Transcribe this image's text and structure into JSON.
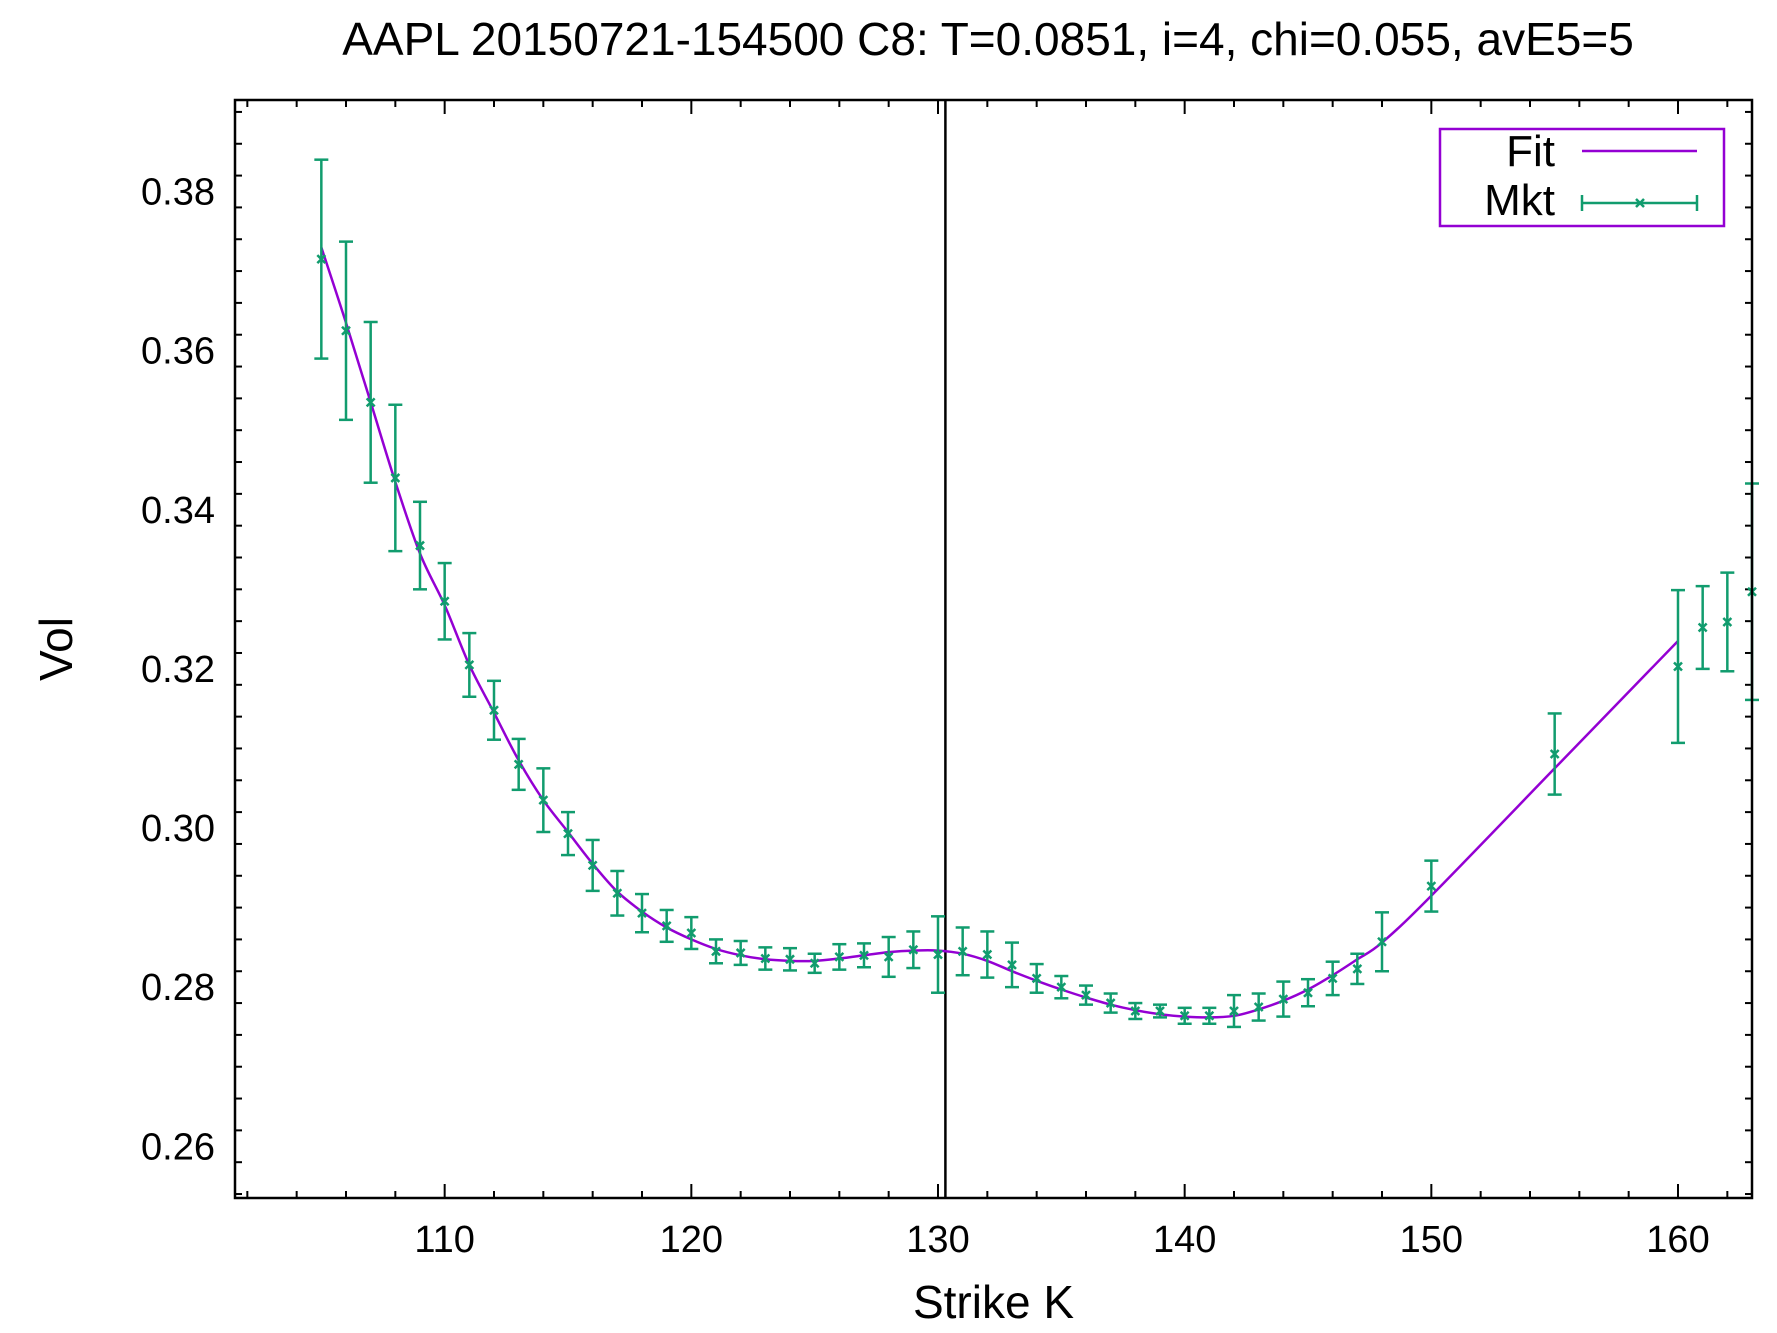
{
  "chart_data": {
    "type": "line",
    "title": "AAPL 20150721-154500  C8:  T=0.0851, i=4, chi=0.055, avE5=5",
    "xlabel": "Strike K",
    "ylabel": "Vol",
    "xlim": [
      101.5,
      163
    ],
    "ylim": [
      0.2535,
      0.3915
    ],
    "x_ticks": [
      "110",
      "120",
      "130",
      "140",
      "150",
      "160"
    ],
    "y_ticks": [
      "0.26",
      "0.28",
      "0.30",
      "0.32",
      "0.34",
      "0.36",
      "0.38"
    ],
    "vertical_line_x": 130.3,
    "legend_position": "top-right",
    "series": [
      {
        "name": "Fit",
        "color": "#9400d3",
        "style": "line",
        "x": [
          105,
          106,
          107,
          108,
          109,
          110,
          111,
          112,
          113,
          114,
          115,
          116,
          117,
          118,
          119,
          120,
          121,
          122,
          123,
          124,
          125,
          126,
          127,
          128,
          129,
          130,
          131,
          132,
          133,
          134,
          135,
          136,
          137,
          138,
          139,
          140,
          141,
          142,
          143,
          144,
          145,
          146,
          147,
          148,
          150,
          155,
          160
        ],
        "y": [
          0.373,
          0.3635,
          0.3535,
          0.3435,
          0.3345,
          0.328,
          0.3205,
          0.3145,
          0.3085,
          0.3035,
          0.2995,
          0.2955,
          0.292,
          0.2895,
          0.2875,
          0.286,
          0.2848,
          0.284,
          0.2835,
          0.2833,
          0.2833,
          0.2836,
          0.284,
          0.2844,
          0.2846,
          0.2846,
          0.2842,
          0.2833,
          0.282,
          0.2808,
          0.2797,
          0.2787,
          0.2778,
          0.2771,
          0.2766,
          0.2763,
          0.2762,
          0.2764,
          0.2772,
          0.2783,
          0.2797,
          0.2815,
          0.2835,
          0.2856,
          0.2915,
          0.3075,
          0.3235
        ]
      },
      {
        "name": "Mkt",
        "color": "#119c6e",
        "style": "errorbars",
        "x": [
          105,
          106,
          107,
          108,
          109,
          110,
          111,
          112,
          113,
          114,
          115,
          116,
          117,
          118,
          119,
          120,
          121,
          122,
          123,
          124,
          125,
          126,
          127,
          128,
          129,
          130,
          131,
          132,
          133,
          134,
          135,
          136,
          137,
          138,
          139,
          140,
          141,
          142,
          143,
          144,
          145,
          146,
          147,
          148,
          150,
          155,
          160,
          161,
          162,
          163
        ],
        "y": [
          0.3715,
          0.3625,
          0.3535,
          0.344,
          0.3355,
          0.3285,
          0.3205,
          0.3148,
          0.308,
          0.3035,
          0.2993,
          0.2953,
          0.2918,
          0.2893,
          0.2877,
          0.2868,
          0.2845,
          0.2843,
          0.2836,
          0.2835,
          0.283,
          0.2838,
          0.284,
          0.2838,
          0.2847,
          0.2841,
          0.2845,
          0.2841,
          0.2828,
          0.2811,
          0.28,
          0.279,
          0.278,
          0.277,
          0.277,
          0.2764,
          0.2764,
          0.277,
          0.2775,
          0.2785,
          0.2793,
          0.2811,
          0.2823,
          0.2857,
          0.2927,
          0.3093,
          0.3203,
          0.3252,
          0.3259,
          0.3297
        ],
        "err": [
          0.0125,
          0.0112,
          0.0101,
          0.0092,
          0.0055,
          0.0048,
          0.004,
          0.0037,
          0.0032,
          0.004,
          0.0027,
          0.0032,
          0.0028,
          0.0024,
          0.002,
          0.002,
          0.0015,
          0.0015,
          0.0014,
          0.0014,
          0.0012,
          0.0016,
          0.0015,
          0.0025,
          0.0023,
          0.0048,
          0.003,
          0.0029,
          0.0028,
          0.0018,
          0.0014,
          0.0012,
          0.0012,
          0.001,
          0.0008,
          0.001,
          0.001,
          0.002,
          0.0017,
          0.0022,
          0.0017,
          0.0021,
          0.0019,
          0.0037,
          0.0032,
          0.0051,
          0.0096,
          0.0052,
          0.0062,
          0.0136
        ]
      }
    ]
  }
}
